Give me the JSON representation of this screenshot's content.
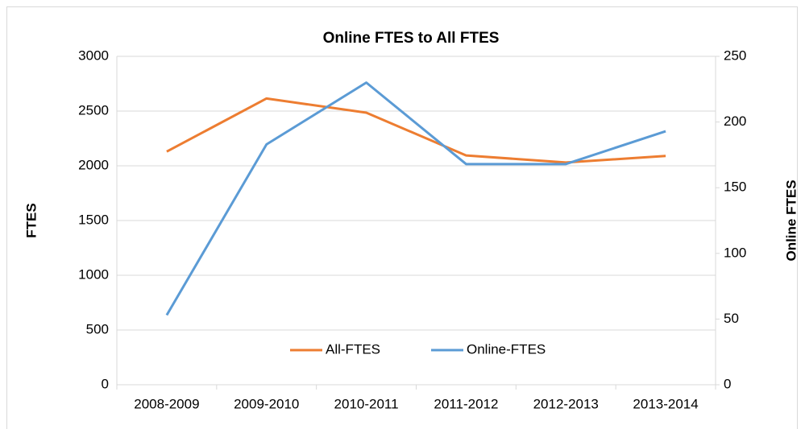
{
  "chart_data": {
    "type": "line",
    "title": "Online FTES to All FTES",
    "categories": [
      "2008-2009",
      "2009-2010",
      "2010-2011",
      "2011-2012",
      "2012-2013",
      "2013-2014"
    ],
    "series": [
      {
        "name": "All-FTES",
        "color": "#ed7d31",
        "values": [
          2130,
          2615,
          2485,
          2095,
          2030,
          2090
        ]
      },
      {
        "name": "Online-FTES",
        "color": "#5b9bd5",
        "axis": "y2",
        "values": [
          53,
          183,
          230,
          168,
          168,
          193
        ]
      }
    ],
    "ylabel": "FTES",
    "y2label": "Online FTES",
    "ylim": [
      0,
      3000
    ],
    "yticks": [
      0,
      500,
      1000,
      1500,
      2000,
      2500,
      3000
    ],
    "y2lim": [
      0,
      250
    ],
    "y2ticks": [
      0,
      50,
      100,
      150,
      200,
      250
    ],
    "grid": true,
    "legend": "bottom"
  }
}
